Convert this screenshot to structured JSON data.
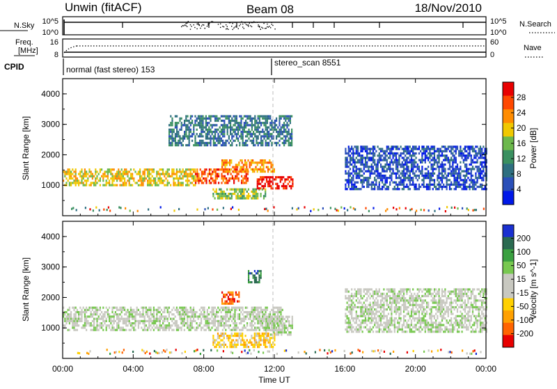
{
  "header": {
    "title": "Unwin (fitACF)",
    "beam": "Beam 08",
    "date": "18/Nov/2010"
  },
  "nsky_panel": {
    "left_label": "N.Sky",
    "left_ticks": [
      "10^5",
      "10^0"
    ],
    "right_ticks": [
      "10^5",
      "10^0"
    ],
    "right_label": "N.Search"
  },
  "freq_panel": {
    "left_label_top": "Freq.",
    "left_label_bottom": "[MHz]",
    "left_ticks": [
      "16",
      "8"
    ],
    "right_ticks": [
      "60",
      "0"
    ],
    "right_label": "Nave"
  },
  "cpid_panel": {
    "label": "CPID",
    "entries": [
      {
        "label": "normal (fast stereo) 153",
        "start_hour": 0
      },
      {
        "label": "stereo_scan 8551",
        "start_hour": 12
      }
    ]
  },
  "colors": {
    "power_scale": [
      "#0018e8",
      "#2a4fb8",
      "#2e6f80",
      "#3a9060",
      "#6cb84c",
      "#f0c800",
      "#ff8c00",
      "#ff4800",
      "#e80000"
    ],
    "velocity_scale": [
      "#e80000",
      "#ff6400",
      "#ffa000",
      "#ffd000",
      "#c8c8c0",
      "#c8c8c0",
      "#78c850",
      "#3aa040",
      "#2a6a50",
      "#1a30d0"
    ],
    "ground_scatter": "#c8c8c0"
  },
  "chart_data": [
    {
      "type": "heatmap",
      "name": "power",
      "xlabel": "",
      "ylabel": "Slant Range [km]",
      "xlim": [
        0,
        24
      ],
      "ylim": [
        0,
        4500
      ],
      "yticks": [
        1000,
        2000,
        3000,
        4000
      ],
      "colorbar": {
        "label": "Power [dB]",
        "ticks": [
          "28",
          "24",
          "20",
          "16",
          "12",
          "8",
          "4"
        ],
        "range": [
          0,
          30
        ]
      },
      "echo_regions": [
        {
          "t": [
            0.0,
            7.5
          ],
          "range": [
            1000,
            1550
          ],
          "power_db": 16
        },
        {
          "t": [
            7.5,
            10.5
          ],
          "range": [
            1050,
            1550
          ],
          "power_db": 24
        },
        {
          "t": [
            9.0,
            12.0
          ],
          "range": [
            1450,
            1850
          ],
          "power_db": 20
        },
        {
          "t": [
            8.5,
            11.5
          ],
          "range": [
            600,
            900
          ],
          "power_db": 14
        },
        {
          "t": [
            11.0,
            13.0
          ],
          "range": [
            900,
            1300
          ],
          "power_db": 26
        },
        {
          "t": [
            6.0,
            13.0
          ],
          "range": [
            2300,
            3300
          ],
          "power_db": 6
        },
        {
          "t": [
            16.0,
            24.0
          ],
          "range": [
            900,
            2300
          ],
          "power_db": 4
        }
      ]
    },
    {
      "type": "heatmap",
      "name": "velocity",
      "xlabel": "Time UT",
      "ylabel": "Slant Range [km]",
      "xlim": [
        0,
        24
      ],
      "ylim": [
        0,
        4500
      ],
      "yticks": [
        1000,
        2000,
        3000,
        4000
      ],
      "xticks": [
        "00:00",
        "04:00",
        "08:00",
        "12:00",
        "16:00",
        "20:00",
        "00:00"
      ],
      "colorbar": {
        "label": "Velocity [m s^-1]",
        "ticks": [
          "200",
          "100",
          "50",
          "15",
          "-15",
          "-50",
          "-100",
          "-200"
        ],
        "range": [
          -250,
          250
        ]
      },
      "echo_regions": [
        {
          "t": [
            0.0,
            12.5
          ],
          "range": [
            900,
            1700
          ],
          "velocity": 0
        },
        {
          "t": [
            8.5,
            12.0
          ],
          "range": [
            400,
            850
          ],
          "velocity": -80
        },
        {
          "t": [
            11.5,
            13.0
          ],
          "range": [
            800,
            1400
          ],
          "velocity": 40
        },
        {
          "t": [
            9.0,
            10.0
          ],
          "range": [
            1800,
            2200
          ],
          "velocity": -200
        },
        {
          "t": [
            10.5,
            11.2
          ],
          "range": [
            2500,
            2900
          ],
          "velocity": 200
        },
        {
          "t": [
            16.0,
            24.0
          ],
          "range": [
            900,
            2300
          ],
          "velocity": 0
        }
      ]
    }
  ]
}
